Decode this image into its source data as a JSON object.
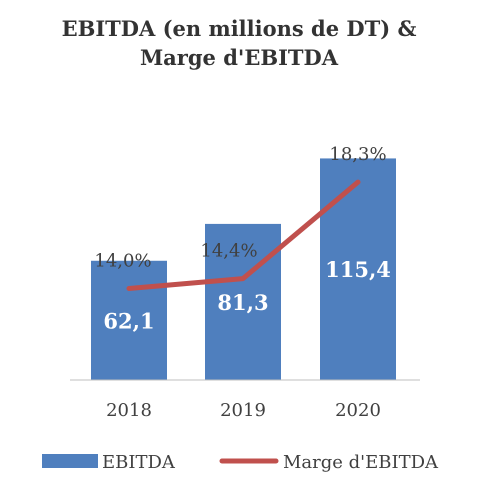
{
  "chart_data": {
    "type": "bar+line",
    "title_line1": "EBITDA (en millions de DT) &",
    "title_line2": "Marge d'EBITDA",
    "categories": [
      "2018",
      "2019",
      "2020"
    ],
    "bar_series": {
      "name": "EBITDA",
      "values": [
        62.1,
        81.3,
        115.4
      ],
      "labels": [
        "62,1",
        "81,3",
        "115,4"
      ],
      "color": "#4F7FBE"
    },
    "line_series": {
      "name": "Marge d'EBITDA",
      "values": [
        14.0,
        14.4,
        18.3
      ],
      "labels": [
        "14,0%",
        "14,4%",
        "18,3%"
      ],
      "color": "#C0504D"
    },
    "bar_ylim": [
      0,
      125
    ],
    "line_ylim": [
      10.3,
      20
    ],
    "grid": false,
    "legend_position": "bottom"
  }
}
